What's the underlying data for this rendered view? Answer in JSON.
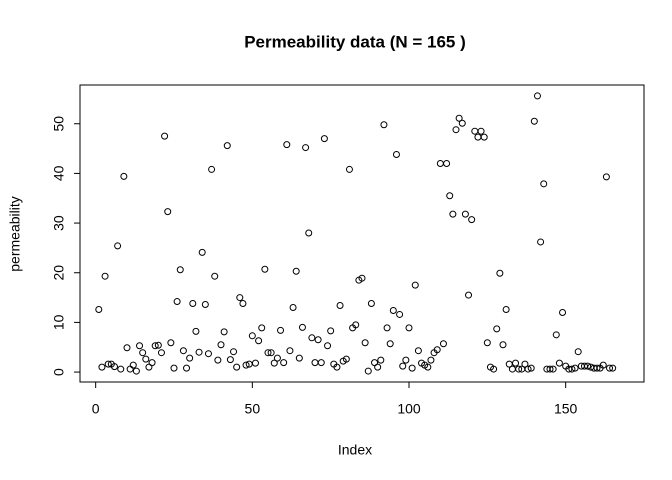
{
  "chart_data": {
    "type": "scatter",
    "title": "Permeability data (N = 165 )",
    "xlabel": "Index",
    "ylabel": "permeability",
    "color": "#000000",
    "x": [
      1,
      2,
      3,
      4,
      5,
      6,
      7,
      8,
      9,
      10,
      11,
      12,
      13,
      14,
      15,
      16,
      17,
      18,
      19,
      20,
      21,
      22,
      23,
      24,
      25,
      26,
      27,
      28,
      29,
      30,
      31,
      32,
      33,
      34,
      35,
      36,
      37,
      38,
      39,
      40,
      41,
      42,
      43,
      44,
      45,
      46,
      47,
      48,
      49,
      50,
      51,
      52,
      53,
      54,
      55,
      56,
      57,
      58,
      59,
      60,
      61,
      62,
      63,
      64,
      65,
      66,
      67,
      68,
      69,
      70,
      71,
      72,
      73,
      74,
      75,
      76,
      77,
      78,
      79,
      80,
      81,
      82,
      83,
      84,
      85,
      86,
      87,
      88,
      89,
      90,
      91,
      92,
      93,
      94,
      95,
      96,
      97,
      98,
      99,
      100,
      101,
      102,
      103,
      104,
      105,
      106,
      107,
      108,
      109,
      110,
      111,
      112,
      113,
      114,
      115,
      116,
      117,
      118,
      119,
      120,
      121,
      122,
      123,
      124,
      125,
      126,
      127,
      128,
      129,
      130,
      131,
      132,
      133,
      134,
      135,
      136,
      137,
      138,
      139,
      140,
      141,
      142,
      143,
      144,
      145,
      146,
      147,
      148,
      149,
      150,
      151,
      152,
      153,
      154,
      155,
      156,
      157,
      158,
      159,
      160,
      161,
      162,
      163,
      164,
      165
    ],
    "values": [
      12.6,
      1.0,
      19.3,
      1.6,
      1.6,
      1.1,
      25.4,
      0.6,
      39.4,
      4.9,
      0.6,
      1.4,
      0.2,
      5.3,
      3.9,
      2.6,
      1.0,
      1.9,
      5.3,
      5.4,
      3.9,
      47.5,
      32.3,
      5.9,
      0.8,
      14.2,
      20.6,
      4.3,
      0.8,
      2.8,
      13.8,
      8.2,
      4.0,
      24.1,
      13.6,
      3.7,
      40.8,
      19.3,
      2.4,
      5.5,
      8.1,
      45.6,
      2.5,
      4.1,
      1.0,
      15.0,
      13.8,
      1.4,
      1.6,
      7.3,
      1.8,
      6.3,
      8.9,
      20.7,
      3.9,
      3.9,
      1.8,
      2.8,
      8.4,
      1.9,
      45.8,
      4.3,
      13.0,
      20.3,
      2.8,
      9.0,
      45.2,
      28.0,
      6.9,
      1.9,
      6.5,
      1.9,
      47.0,
      5.3,
      8.3,
      1.6,
      1.0,
      13.4,
      2.2,
      2.6,
      40.8,
      8.9,
      9.5,
      18.5,
      18.9,
      5.9,
      0.2,
      13.8,
      1.9,
      1.0,
      2.4,
      49.8,
      8.9,
      5.7,
      12.4,
      43.8,
      11.6,
      1.2,
      2.4,
      8.9,
      0.8,
      17.5,
      4.3,
      1.8,
      1.4,
      1.0,
      2.4,
      3.9,
      4.5,
      42.0,
      5.7,
      42.0,
      35.5,
      31.8,
      48.8,
      51.1,
      50.1,
      31.8,
      15.5,
      30.7,
      48.5,
      47.3,
      48.5,
      47.3,
      5.9,
      1.0,
      0.6,
      8.7,
      19.9,
      5.5,
      12.6,
      1.6,
      0.6,
      1.8,
      0.6,
      0.6,
      1.6,
      0.6,
      0.8,
      50.5,
      55.6,
      26.2,
      37.9,
      0.6,
      0.6,
      0.6,
      7.5,
      1.8,
      12.0,
      1.2,
      0.6,
      0.6,
      0.8,
      4.1,
      1.2,
      1.2,
      1.2,
      1.0,
      0.8,
      0.8,
      0.8,
      1.4,
      39.3,
      0.8,
      0.8
    ],
    "xlim": [
      -5,
      175
    ],
    "ylim": [
      -2,
      57.8
    ],
    "xticks": [
      0,
      50,
      100,
      150
    ],
    "yticks": [
      0,
      10,
      20,
      30,
      40,
      50
    ]
  }
}
